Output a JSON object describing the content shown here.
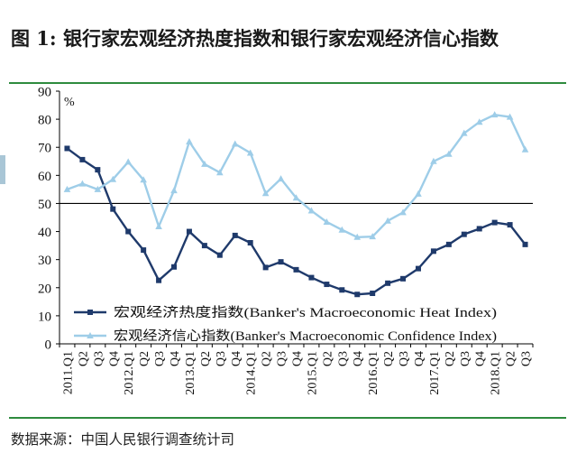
{
  "page": {
    "title": "图  1: 银行家宏观经济热度指数和银行家宏观经济信心指数",
    "source": "数据来源：中国人民银行调查统计司"
  },
  "chart_data": {
    "type": "line",
    "title": "",
    "xlabel": "",
    "ylabel": "%",
    "ylim": [
      0,
      90
    ],
    "yticks": [
      0,
      10,
      20,
      30,
      40,
      50,
      60,
      70,
      80,
      90
    ],
    "reference_line": 50,
    "grid": false,
    "legend_placement": "bottom-left",
    "categories": [
      "2011.Q1",
      "Q2",
      "Q3",
      "Q4",
      "2012.Q1",
      "Q2",
      "Q3",
      "Q4",
      "2013.Q1",
      "Q2",
      "Q3",
      "Q4",
      "2014.Q1",
      "Q2",
      "Q3",
      "Q4",
      "2015.Q1",
      "Q2",
      "Q3",
      "Q4",
      "2016.Q1",
      "Q2",
      "Q3",
      "Q4",
      "2017.Q1",
      "Q2",
      "Q3",
      "Q4",
      "2018.Q1",
      "Q2",
      "Q3"
    ],
    "series": [
      {
        "name": "宏观经济热度指数(Banker's Macroeconomic Heat Index)",
        "color": "#1f3a6b",
        "marker": "square",
        "values": [
          69.6,
          65.6,
          62.0,
          48.0,
          40.0,
          33.4,
          22.6,
          27.4,
          40.0,
          35.0,
          31.6,
          38.6,
          36.0,
          27.2,
          29.2,
          26.4,
          23.6,
          21.2,
          19.2,
          17.6,
          18.0,
          21.6,
          23.2,
          26.8,
          33.0,
          35.4,
          39.0,
          41.0,
          43.2,
          42.4,
          35.4
        ]
      },
      {
        "name": "宏观经济信心指数(Banker's Macroeconomic Confidence Index)",
        "color": "#9ecde8",
        "marker": "triangle",
        "values": [
          55.0,
          57.0,
          55.0,
          58.6,
          64.8,
          58.4,
          41.8,
          54.6,
          72.0,
          64.0,
          61.0,
          71.2,
          68.0,
          53.6,
          58.8,
          52.0,
          47.4,
          43.4,
          40.6,
          38.0,
          38.2,
          43.8,
          46.8,
          53.4,
          65.0,
          67.6,
          75.0,
          79.0,
          81.6,
          80.8,
          69.2
        ]
      }
    ]
  }
}
